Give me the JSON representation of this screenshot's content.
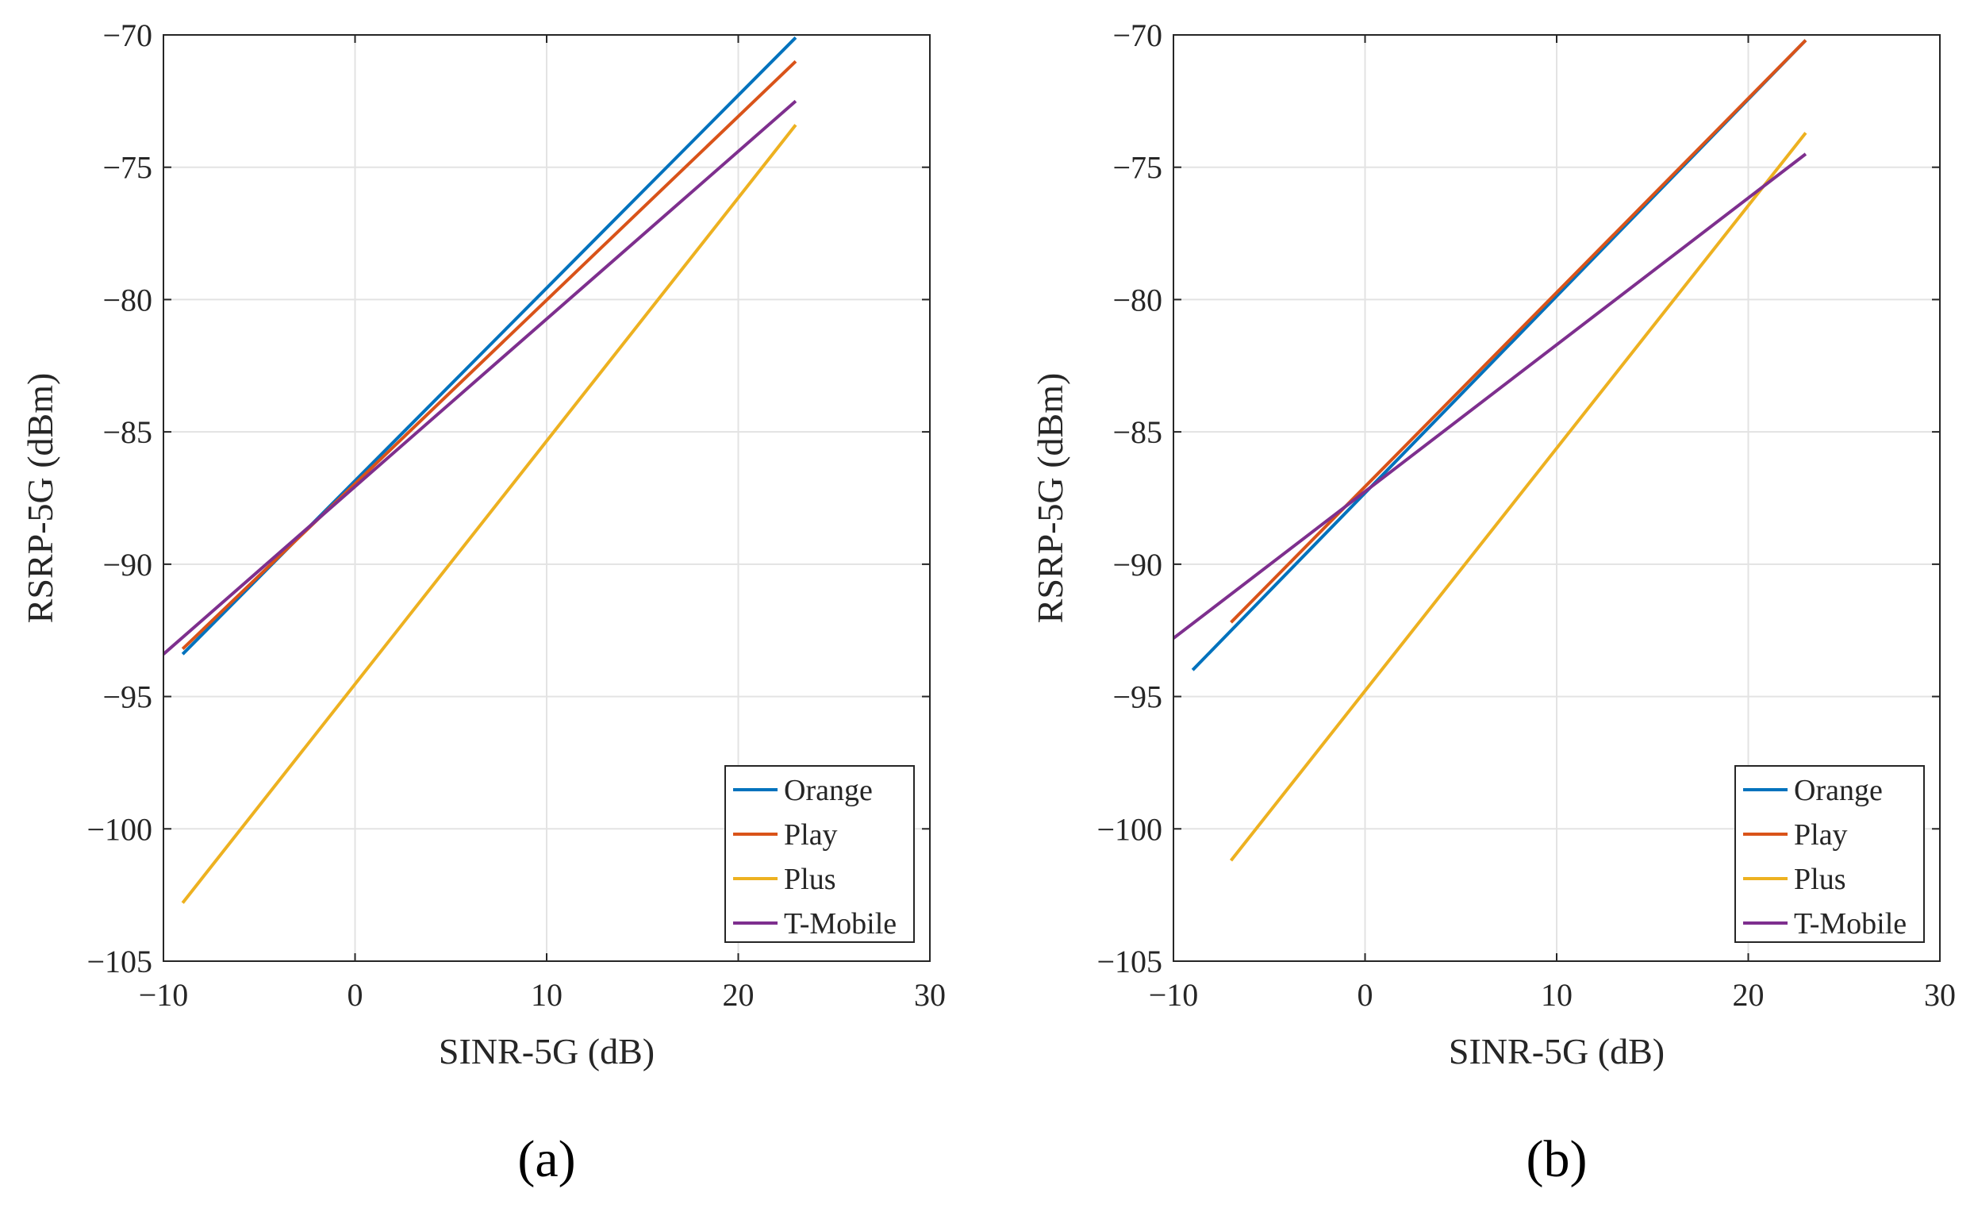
{
  "chart_data": [
    {
      "type": "line",
      "panel_label": "(a)",
      "xlabel": "SINR-5G  (dB)",
      "ylabel": "RSRP-5G  (dBm)",
      "xlim": [
        -10,
        30
      ],
      "ylim": [
        -105,
        -70
      ],
      "xticks": [
        -10,
        0,
        10,
        20,
        30
      ],
      "yticks": [
        -70,
        -75,
        -80,
        -85,
        -90,
        -95,
        -100,
        -105
      ],
      "xtick_labels": [
        "−10",
        "0",
        "10",
        "20",
        "30"
      ],
      "ytick_labels": [
        "−70",
        "−75",
        "−80",
        "−85",
        "−90",
        "−95",
        "−100",
        "−105"
      ],
      "grid": true,
      "legend_position": "bottom-right",
      "series": [
        {
          "name": "Orange",
          "color": "#0072BD",
          "x": [
            -9,
            23
          ],
          "y": [
            -93.4,
            -70.1
          ]
        },
        {
          "name": "Play",
          "color": "#D95319",
          "x": [
            -9,
            23
          ],
          "y": [
            -93.2,
            -71.0
          ]
        },
        {
          "name": "Plus",
          "color": "#EDB120",
          "x": [
            -9,
            23
          ],
          "y": [
            -102.8,
            -73.4
          ]
        },
        {
          "name": "T-Mobile",
          "color": "#7E2F8E",
          "x": [
            -10,
            23
          ],
          "y": [
            -93.4,
            -72.5
          ]
        }
      ]
    },
    {
      "type": "line",
      "panel_label": "(b)",
      "xlabel": "SINR-5G  (dB)",
      "ylabel": "RSRP-5G  (dBm)",
      "xlim": [
        -10,
        30
      ],
      "ylim": [
        -105,
        -70
      ],
      "xticks": [
        -10,
        0,
        10,
        20,
        30
      ],
      "yticks": [
        -70,
        -75,
        -80,
        -85,
        -90,
        -95,
        -100,
        -105
      ],
      "xtick_labels": [
        "−10",
        "0",
        "10",
        "20",
        "30"
      ],
      "ytick_labels": [
        "−70",
        "−75",
        "−80",
        "−85",
        "−90",
        "−95",
        "−100",
        "−105"
      ],
      "grid": true,
      "legend_position": "bottom-right",
      "series": [
        {
          "name": "Orange",
          "color": "#0072BD",
          "x": [
            -9,
            23
          ],
          "y": [
            -94.0,
            -70.2
          ]
        },
        {
          "name": "Play",
          "color": "#D95319",
          "x": [
            -7,
            23
          ],
          "y": [
            -92.2,
            -70.2
          ]
        },
        {
          "name": "Plus",
          "color": "#EDB120",
          "x": [
            -7,
            23
          ],
          "y": [
            -101.2,
            -73.7
          ]
        },
        {
          "name": "T-Mobile",
          "color": "#7E2F8E",
          "x": [
            -10,
            23
          ],
          "y": [
            -92.8,
            -74.5
          ]
        }
      ]
    }
  ]
}
